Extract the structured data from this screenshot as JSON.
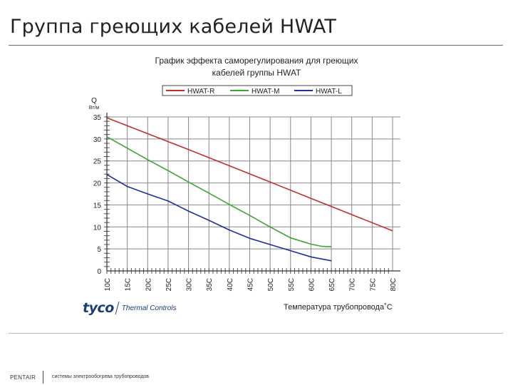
{
  "slide": {
    "title": "Группа греющих кабелей HWAT",
    "brand_logo": "tyco",
    "brand_sub": "Thermal Controls",
    "footer_brand": "PENTAIR",
    "footer_text": "системы электрообогрева трубопроводов"
  },
  "chart_data": {
    "type": "line",
    "title_lines": [
      "График эффекта саморегулирования для греющих",
      "кабелей группы HWAT"
    ],
    "ylabel": "Q",
    "yunit": "Вт/м",
    "xlabel": "Температура трубопровода˚С",
    "x_ticks": [
      "10C",
      "15C",
      "20C",
      "25C",
      "30C",
      "35C",
      "40C",
      "45C",
      "50C",
      "55C",
      "60C",
      "65C",
      "70C",
      "75C",
      "80C"
    ],
    "y_ticks": [
      0,
      5,
      10,
      15,
      20,
      25,
      30,
      35
    ],
    "xlim": [
      10,
      80
    ],
    "ylim": [
      0,
      35
    ],
    "grid": true,
    "legend_position": "top",
    "series": [
      {
        "name": "HWAT-R",
        "color": "#c0302a",
        "x": [
          10,
          20,
          30,
          40,
          50,
          60,
          70,
          80
        ],
        "y": [
          34.8,
          31.2,
          27.6,
          23.9,
          20.2,
          16.5,
          12.8,
          9.1
        ]
      },
      {
        "name": "HWAT-M",
        "color": "#3aa532",
        "x": [
          10,
          15,
          20,
          25,
          30,
          35,
          40,
          45,
          50,
          55,
          60,
          62.5,
          65
        ],
        "y": [
          30.5,
          27.9,
          25.3,
          22.8,
          20.2,
          17.7,
          15.1,
          12.6,
          10.0,
          7.5,
          6.1,
          5.6,
          5.5
        ]
      },
      {
        "name": "HWAT-L",
        "color": "#1f2f9c",
        "x": [
          10,
          15,
          20,
          25,
          30,
          35,
          40,
          45,
          50,
          55,
          60,
          65
        ],
        "y": [
          21.9,
          19.2,
          17.5,
          15.9,
          13.6,
          11.5,
          9.3,
          7.4,
          6.0,
          4.6,
          3.2,
          2.3
        ]
      }
    ]
  }
}
